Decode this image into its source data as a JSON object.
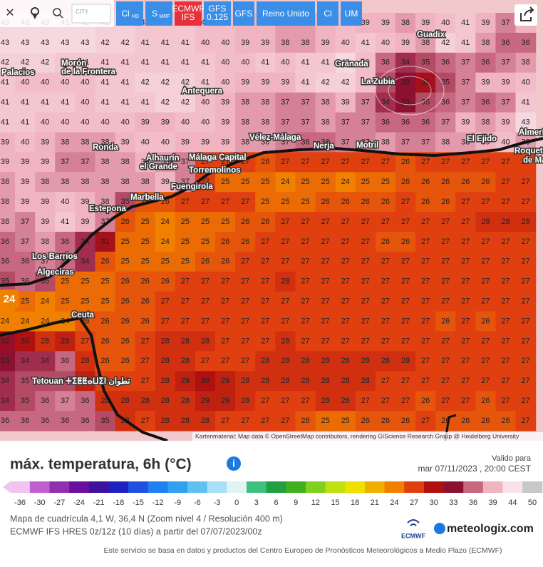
{
  "toolbar": {
    "city_placeholder": "CITY",
    "models": [
      {
        "label": "Cl",
        "sub": "HD"
      },
      {
        "label": "S",
        "sub": "MRF"
      },
      {
        "label": "ECMWF",
        "sub": "IFS",
        "active": true
      },
      {
        "label": "GFS",
        "sub": "0.125"
      },
      {
        "label": "GFS"
      },
      {
        "label": "Reino Unido"
      },
      {
        "label": "Cl"
      },
      {
        "label": "UM"
      }
    ]
  },
  "map": {
    "grid": [
      [
        43,
        43,
        43,
        43,
        43,
        42,
        42,
        41,
        41,
        41,
        40,
        40,
        39,
        39,
        38,
        38,
        39,
        40,
        39,
        39,
        38,
        39,
        40,
        41,
        39,
        37,
        39
      ],
      [
        43,
        43,
        43,
        43,
        43,
        42,
        42,
        41,
        41,
        41,
        40,
        40,
        39,
        39,
        38,
        38,
        39,
        40,
        41,
        40,
        39,
        38,
        42,
        41,
        38,
        36,
        36
      ],
      [
        42,
        42,
        42,
        41,
        41,
        41,
        41,
        41,
        41,
        41,
        41,
        40,
        40,
        41,
        40,
        41,
        41,
        43,
        40,
        36,
        34,
        35,
        36,
        37,
        36,
        37,
        38
      ],
      [
        41,
        40,
        40,
        40,
        40,
        41,
        41,
        42,
        42,
        42,
        41,
        40,
        39,
        39,
        39,
        41,
        42,
        42,
        40,
        35,
        33,
        31,
        35,
        37,
        39,
        39,
        40
      ],
      [
        41,
        41,
        41,
        41,
        40,
        41,
        41,
        41,
        42,
        42,
        40,
        39,
        38,
        38,
        37,
        37,
        38,
        39,
        37,
        34,
        33,
        35,
        36,
        37,
        36,
        37,
        41
      ],
      [
        41,
        41,
        40,
        40,
        40,
        40,
        40,
        39,
        39,
        40,
        40,
        39,
        38,
        38,
        37,
        37,
        38,
        37,
        37,
        36,
        36,
        36,
        37,
        39,
        38,
        39,
        43
      ],
      [
        39,
        40,
        39,
        38,
        38,
        38,
        39,
        40,
        40,
        39,
        39,
        39,
        38,
        38,
        37,
        36,
        36,
        37,
        37,
        38,
        37,
        37,
        38,
        38,
        39,
        40,
        38
      ],
      [
        39,
        39,
        39,
        37,
        37,
        38,
        38,
        39,
        38,
        37,
        27,
        27,
        27,
        26,
        27,
        27,
        27,
        27,
        27,
        27,
        26,
        27,
        27,
        27,
        27,
        27,
        27
      ],
      [
        38,
        39,
        38,
        38,
        38,
        38,
        38,
        38,
        39,
        37,
        27,
        25,
        25,
        25,
        24,
        25,
        25,
        24,
        25,
        25,
        26,
        26,
        26,
        26,
        26,
        27,
        27
      ],
      [
        38,
        39,
        39,
        40,
        39,
        38,
        35,
        26,
        26,
        27,
        27,
        27,
        27,
        25,
        25,
        25,
        26,
        26,
        26,
        26,
        27,
        26,
        26,
        27,
        27,
        27,
        27
      ],
      [
        38,
        37,
        39,
        41,
        39,
        37,
        26,
        25,
        24,
        25,
        25,
        25,
        26,
        26,
        27,
        27,
        27,
        27,
        27,
        27,
        27,
        27,
        27,
        27,
        28,
        28,
        28
      ],
      [
        36,
        37,
        38,
        36,
        34,
        31,
        25,
        25,
        24,
        25,
        25,
        26,
        26,
        27,
        27,
        27,
        27,
        27,
        27,
        26,
        26,
        27,
        27,
        27,
        27,
        27,
        27
      ],
      [
        36,
        36,
        37,
        36,
        34,
        26,
        25,
        25,
        25,
        25,
        26,
        26,
        27,
        27,
        27,
        27,
        27,
        27,
        27,
        27,
        27,
        27,
        27,
        27,
        27,
        27,
        27
      ],
      [
        35,
        36,
        35,
        25,
        25,
        25,
        26,
        26,
        26,
        27,
        27,
        27,
        27,
        27,
        28,
        27,
        27,
        27,
        27,
        27,
        27,
        27,
        27,
        27,
        27,
        27,
        27
      ],
      [
        24,
        25,
        24,
        25,
        25,
        25,
        26,
        26,
        27,
        27,
        27,
        27,
        27,
        27,
        27,
        27,
        27,
        27,
        27,
        27,
        27,
        27,
        27,
        27,
        27,
        27,
        27
      ],
      [
        24,
        24,
        24,
        24,
        26,
        26,
        26,
        26,
        27,
        27,
        27,
        27,
        27,
        27,
        27,
        27,
        27,
        27,
        27,
        27,
        27,
        27,
        26,
        27,
        26,
        27,
        27
      ],
      [
        32,
        30,
        28,
        29,
        27,
        26,
        26,
        27,
        28,
        28,
        28,
        27,
        27,
        27,
        28,
        27,
        27,
        27,
        27,
        27,
        27,
        27,
        27,
        27,
        27,
        27,
        27
      ],
      [
        33,
        34,
        34,
        36,
        28,
        26,
        26,
        27,
        28,
        28,
        27,
        27,
        27,
        28,
        28,
        28,
        28,
        28,
        28,
        28,
        28,
        27,
        27,
        27,
        27,
        27,
        27
      ],
      [
        34,
        35,
        35,
        35,
        29,
        27,
        27,
        27,
        28,
        29,
        30,
        29,
        28,
        28,
        28,
        28,
        28,
        28,
        28,
        27,
        27,
        27,
        27,
        27,
        27,
        27,
        27
      ],
      [
        34,
        35,
        36,
        37,
        36,
        28,
        28,
        28,
        28,
        28,
        29,
        29,
        28,
        27,
        27,
        27,
        28,
        28,
        27,
        27,
        27,
        26,
        27,
        27,
        26,
        27,
        27
      ],
      [
        36,
        36,
        36,
        36,
        36,
        35,
        28,
        27,
        28,
        28,
        28,
        27,
        27,
        27,
        27,
        26,
        25,
        25,
        26,
        26,
        26,
        27,
        26,
        26,
        26,
        26,
        27
      ]
    ],
    "cities": [
      "Guadix",
      "Morón",
      "de la Frontera",
      "Palacios",
      "Antequera",
      "Granada",
      "La Zubia",
      "Ronda",
      "Vélez-Málaga",
      "Nerja",
      "Motril",
      "El Ejido",
      "Alhaurín",
      "el Grande",
      "Málaga Capital",
      "Torremolinos",
      "Fuengirola",
      "Marbella",
      "Estepona",
      "Los Barrios",
      "Algeciras",
      "Ceuta",
      "Tetouan ⵜⵉⵟⵟⴰⵡⵉⵏ تطوان",
      "Almería",
      "Roquetas",
      "de Mar"
    ],
    "marker_label": "24",
    "attribution": "Kartenmaterial: Map data © OpenStreetMap contributors, rendering GIScience Research Group @ Heidelberg University"
  },
  "legend": {
    "title": "máx. temperatura, 6h (°C)",
    "valid_label": "Valido para",
    "valid_time": "mar 07/11/2023 , 20:00 CEST",
    "ticks": [
      -36,
      -30,
      -27,
      -24,
      -21,
      -18,
      -15,
      -12,
      -9,
      -6,
      -3,
      0,
      3,
      6,
      9,
      12,
      15,
      18,
      21,
      24,
      27,
      30,
      33,
      36,
      39,
      44,
      50
    ],
    "colors": [
      "#f0c4f0",
      "#c060d0",
      "#9030b0",
      "#6a10a0",
      "#4010a0",
      "#2020c0",
      "#2050e0",
      "#2080f0",
      "#30a0f0",
      "#60c0f0",
      "#a8e0f8",
      "#e0f4f4",
      "#40c080",
      "#20a040",
      "#40b020",
      "#80d020",
      "#c0e010",
      "#f0e000",
      "#f0b000",
      "#f08000",
      "#e04010",
      "#b01010",
      "#8c1030",
      "#c86880",
      "#f0b4c0",
      "#f8e2e8",
      "#c8c8c8"
    ]
  },
  "info": {
    "lines": [
      "Mapa de cuadrícula 4,1 W, 36,4 N  (Zoom nivel 4 / Resolución 400 m)",
      "ECMWF IFS HRES 0z/12z (10 días) a partir del 07/07/2023/00z"
    ]
  },
  "logos": {
    "ecmwf": "ECMWF",
    "meteologix": "meteologix.com"
  },
  "footer": "Este servicio se basa en datos y productos del Centro Europeo de Pronósticos Meteorológicos a Medio Plazo (ECMWF)"
}
